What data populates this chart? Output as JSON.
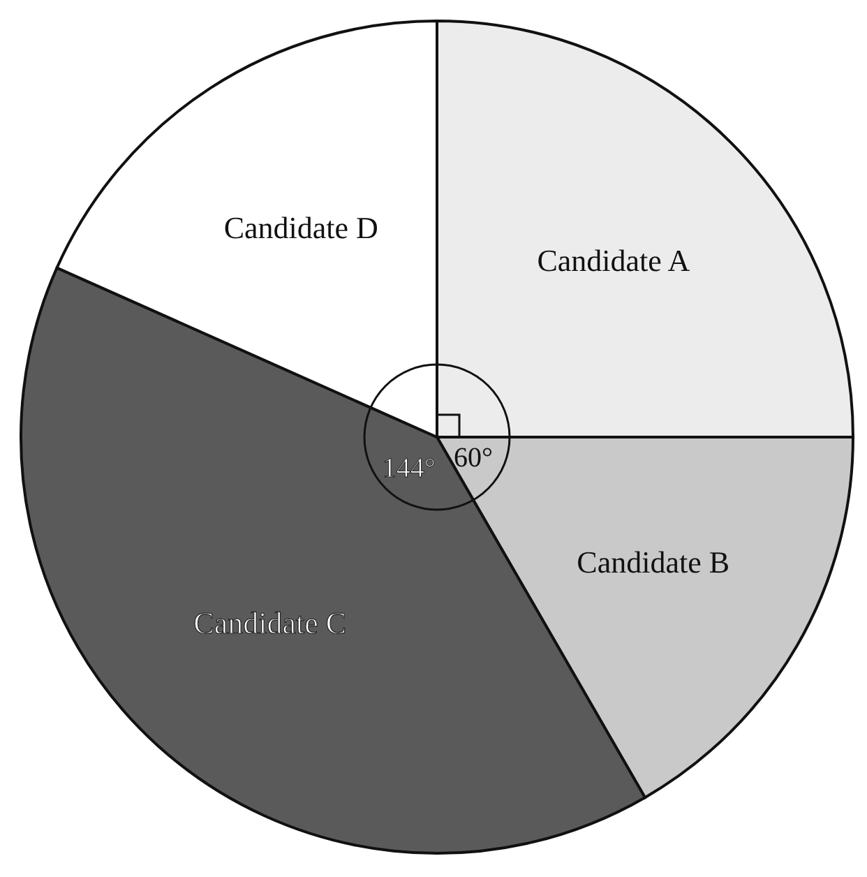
{
  "chart_data": {
    "type": "pie",
    "categories": [
      "Candidate A",
      "Candidate B",
      "Candidate C",
      "Candidate D"
    ],
    "values": [
      90,
      60,
      144,
      66
    ],
    "colors": [
      "#ececec",
      "#c9c9c9",
      "#5a5a5a",
      "#ffffff"
    ],
    "value_labels": [
      null,
      "60°",
      "144°",
      null
    ],
    "legend": false
  }
}
